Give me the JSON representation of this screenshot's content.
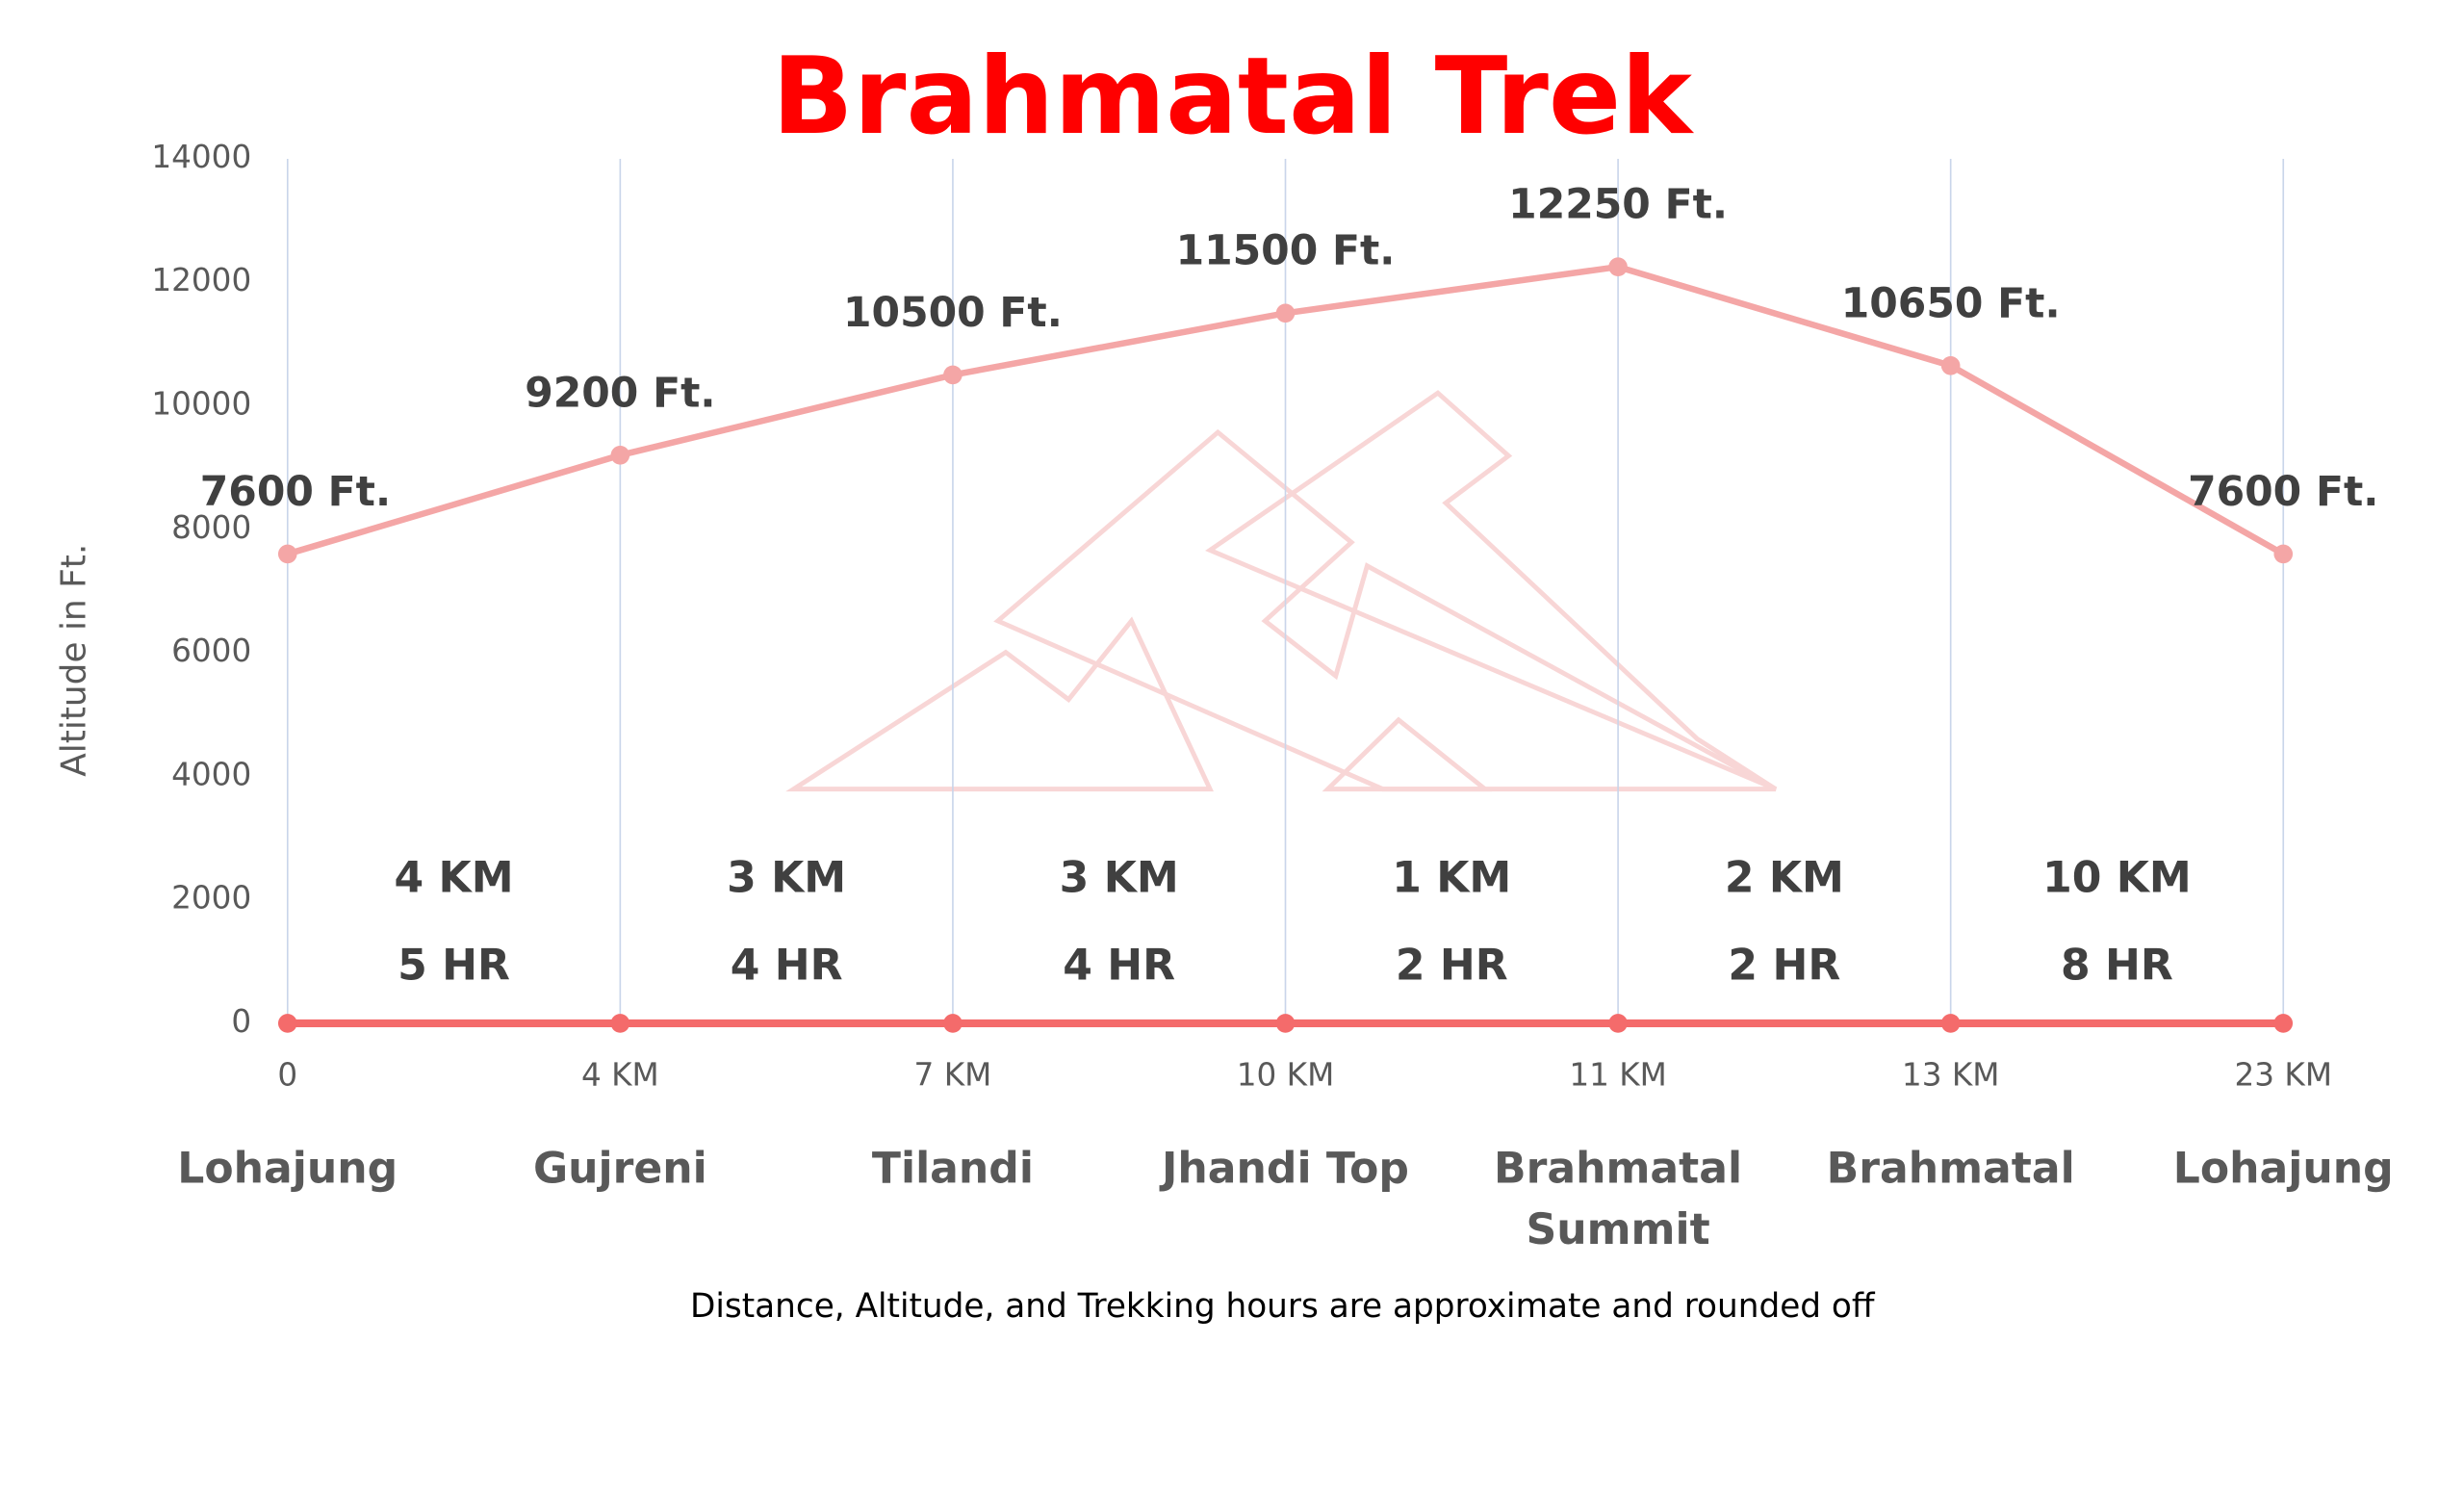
{
  "chart_data": {
    "type": "line",
    "title": "Brahmatal Trek",
    "y_label": "Altitude in Ft.",
    "note": "Distance, Altitude,  and Trekking hours are approximate and rounded  off",
    "categories": [
      "0",
      "4 KM",
      "7 KM",
      "10 KM",
      "11 KM",
      "13 KM",
      "23 KM"
    ],
    "stops": [
      "Lohajung",
      "Gujreni",
      "Tilandi",
      "Jhandi Top",
      "Brahmatal Summit",
      "Brahmatal",
      "Lohajung"
    ],
    "series": [
      {
        "color": "#f4a6a6",
        "values": [
          7600,
          9200,
          10500,
          11500,
          12250,
          10650,
          7600
        ],
        "value_labels": [
          "7600 Ft.",
          "9200 Ft.",
          "10500 Ft.",
          "11500 Ft.",
          "12250 Ft.",
          "10650 Ft.",
          "7600 Ft."
        ]
      },
      {
        "color": "#f46b6b",
        "values": [
          0,
          0,
          0,
          0,
          0,
          0,
          0
        ]
      }
    ],
    "segments": [
      {
        "distance": "4 KM",
        "time": "5 HR"
      },
      {
        "distance": "3 KM",
        "time": "4 HR"
      },
      {
        "distance": "3 KM",
        "time": "4 HR"
      },
      {
        "distance": "1 KM",
        "time": "2 HR"
      },
      {
        "distance": "2 KM",
        "time": "2 HR"
      },
      {
        "distance": "10 KM",
        "time": "8 HR"
      }
    ],
    "ylim": [
      0,
      14000
    ],
    "yticks": [
      0,
      2000,
      4000,
      6000,
      8000,
      10000,
      12000,
      14000
    ],
    "grid": "x"
  }
}
